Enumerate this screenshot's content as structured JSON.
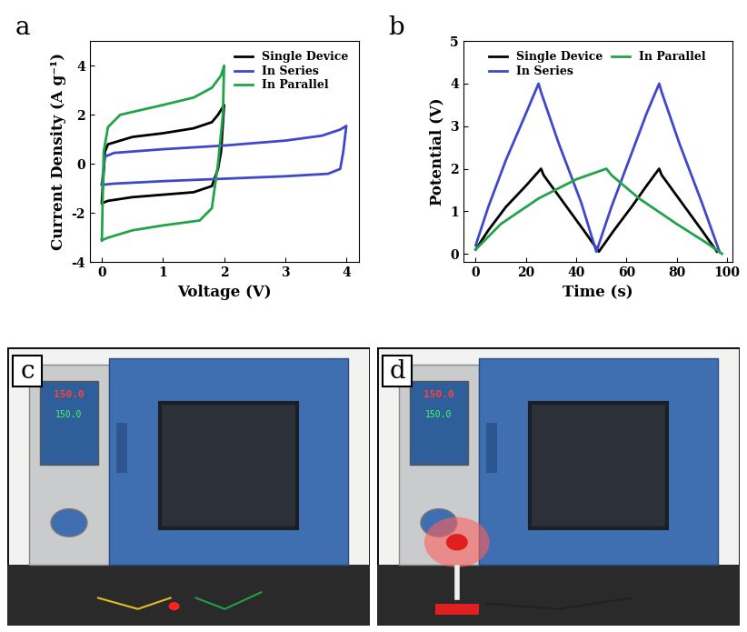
{
  "chart_data": [
    {
      "type": "line",
      "title": "a",
      "x_label": "Voltage (V)",
      "y_label": "Current Density (A g⁻¹)",
      "xlim": [
        -0.2,
        4.2
      ],
      "xticks": [
        0,
        1,
        2,
        3,
        4
      ],
      "ylim": [
        -4,
        5
      ],
      "yticks": [
        -4,
        -2,
        0,
        2,
        4
      ],
      "legend": "upper right",
      "series": [
        {
          "name": "Single Device",
          "color": "#000000",
          "x": [
            0,
            0.05,
            0.1,
            0.5,
            1.0,
            1.5,
            1.8,
            1.9,
            2.0,
            1.95,
            1.9,
            1.8,
            1.5,
            1.0,
            0.5,
            0.1,
            0
          ],
          "values": [
            -1.5,
            0.5,
            0.8,
            1.1,
            1.25,
            1.45,
            1.7,
            2.0,
            2.4,
            0.5,
            -0.2,
            -0.9,
            -1.15,
            -1.25,
            -1.35,
            -1.5,
            -1.6
          ]
        },
        {
          "name": "In Series",
          "color": "#3f48cc",
          "x": [
            0,
            0.05,
            0.2,
            1.0,
            2.0,
            3.0,
            3.6,
            3.9,
            4.0,
            3.95,
            3.9,
            3.7,
            3.0,
            2.0,
            1.0,
            0.2,
            0
          ],
          "values": [
            -0.8,
            0.3,
            0.45,
            0.6,
            0.75,
            0.95,
            1.15,
            1.4,
            1.55,
            0.5,
            -0.2,
            -0.4,
            -0.5,
            -0.6,
            -0.7,
            -0.8,
            -0.85
          ]
        },
        {
          "name": "In Parallel",
          "color": "#22a34a",
          "x": [
            0,
            0.03,
            0.1,
            0.3,
            1.0,
            1.5,
            1.8,
            1.95,
            2.0,
            1.98,
            1.9,
            1.8,
            1.6,
            1.0,
            0.5,
            0.1,
            0
          ],
          "values": [
            -3.1,
            0.5,
            1.5,
            2.0,
            2.4,
            2.7,
            3.1,
            3.6,
            4.0,
            2.0,
            0,
            -1.8,
            -2.3,
            -2.5,
            -2.7,
            -3.0,
            -3.1
          ]
        }
      ]
    },
    {
      "type": "line",
      "title": "b",
      "x_label": "Time (s)",
      "y_label": "Potential (V)",
      "xlim": [
        -5,
        102
      ],
      "xticks": [
        0,
        20,
        40,
        60,
        80,
        100
      ],
      "ylim": [
        -0.2,
        5
      ],
      "yticks": [
        0,
        1,
        2,
        3,
        4,
        5
      ],
      "legend": "upper center",
      "series": [
        {
          "name": "Single Device",
          "color": "#000000",
          "x": [
            0,
            5,
            12,
            20,
            26,
            27,
            35,
            43,
            49,
            55,
            62,
            68,
            73,
            74,
            82,
            90,
            96
          ],
          "values": [
            0.1,
            0.55,
            1.1,
            1.6,
            2.0,
            1.85,
            1.2,
            0.55,
            0.05,
            0.55,
            1.1,
            1.6,
            2.0,
            1.85,
            1.2,
            0.55,
            0.05
          ]
        },
        {
          "name": "In Series",
          "color": "#3f48cc",
          "x": [
            0,
            5,
            12,
            20,
            25,
            26,
            33,
            42,
            48,
            54,
            61,
            68,
            73,
            74,
            81,
            90,
            97
          ],
          "values": [
            0.2,
            1.1,
            2.2,
            3.3,
            4.0,
            3.8,
            2.6,
            1.2,
            0.05,
            1.1,
            2.2,
            3.3,
            4.0,
            3.8,
            2.6,
            1.2,
            0.05
          ]
        },
        {
          "name": "In Parallel",
          "color": "#22a34a",
          "x": [
            0,
            10,
            25,
            40,
            52,
            54,
            65,
            80,
            92,
            98
          ],
          "values": [
            0.1,
            0.7,
            1.3,
            1.75,
            2.0,
            1.85,
            1.3,
            0.7,
            0.25,
            0.0
          ]
        }
      ]
    }
  ],
  "photos": [
    {
      "label": "c",
      "display": [
        "150.0",
        "150.0"
      ]
    },
    {
      "label": "d",
      "display": [
        "150.0",
        "150.0"
      ]
    }
  ]
}
